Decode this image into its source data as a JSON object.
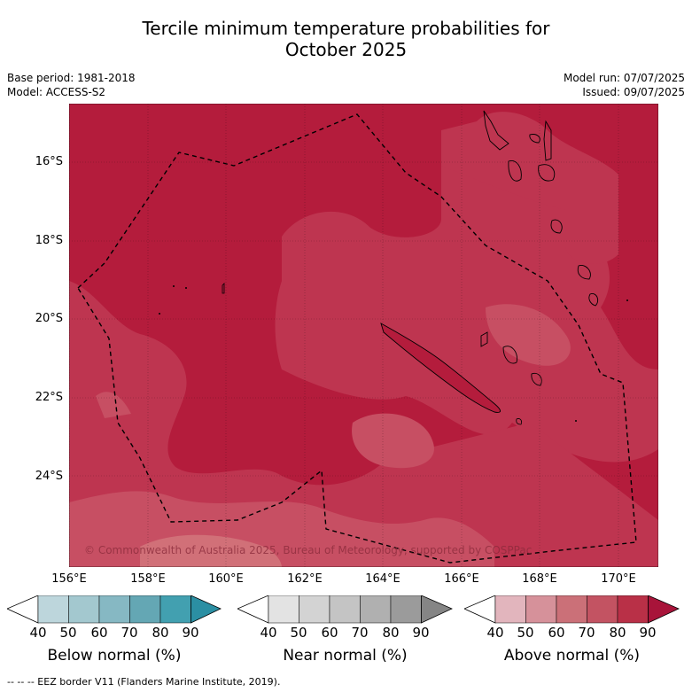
{
  "title_line1": "Tercile minimum temperature probabilities for",
  "title_line2": "October 2025",
  "base_period": "Base period: 1981-2018",
  "model": "Model: ACCESS-S2",
  "model_run": "Model run: 07/07/2025",
  "issued": "Issued: 09/07/2025",
  "map": {
    "latitude_labels": [
      "16°S",
      "18°S",
      "20°S",
      "22°S",
      "24°S"
    ],
    "longitude_labels": [
      "156°E",
      "158°E",
      "160°E",
      "162°E",
      "164°E",
      "166°E",
      "168°E",
      "170°E"
    ],
    "copyright": "© Commonwealth of Australia 2025, Bureau of Meteorology, supported by COSPPac",
    "colors": {
      "above_80_90": "#b41c3c",
      "above_70_80": "#be3550",
      "above_60_70": "#c74f63",
      "above_50_60": "#d17078"
    }
  },
  "colorbars": [
    {
      "label": "Below normal (%)",
      "ticks": [
        "40",
        "50",
        "60",
        "70",
        "80",
        "90"
      ],
      "colors": [
        "#ffffff",
        "#bdd6dc",
        "#a3c8cf",
        "#86b8c3",
        "#64a7b4",
        "#42a0b0",
        "#2b8fa3"
      ]
    },
    {
      "label": "Near normal (%)",
      "ticks": [
        "40",
        "50",
        "60",
        "70",
        "80",
        "90"
      ],
      "colors": [
        "#ffffff",
        "#e3e3e3",
        "#d3d3d3",
        "#c4c4c4",
        "#b0b0b0",
        "#9b9b9b",
        "#858585"
      ]
    },
    {
      "label": "Above normal (%)",
      "ticks": [
        "40",
        "50",
        "60",
        "70",
        "80",
        "90"
      ],
      "colors": [
        "#ffffff",
        "#e2b5bd",
        "#d6919a",
        "#cb7078",
        "#c35362",
        "#b93047",
        "#a8143a"
      ]
    }
  ],
  "footer": "--  --  -- EEZ border V11 (Flanders Marine Institute, 2019)."
}
